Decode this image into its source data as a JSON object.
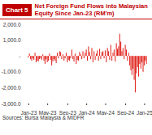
{
  "chart_data": {
    "type": "bar",
    "chart_number": "Chart 5",
    "title": "Net Foreign Fund Flows into Malaysian Equity Since Jan-23 (RM'm)",
    "source": "Sources: Bursa Malaysia & MIDFR",
    "color": "#e0201b",
    "categories": [
      "Jan-23",
      null,
      null,
      null,
      null,
      null,
      null,
      null,
      null,
      null,
      null,
      null,
      null,
      null,
      null,
      null,
      null,
      "May-23",
      null,
      null,
      null,
      null,
      null,
      null,
      null,
      null,
      null,
      null,
      null,
      null,
      null,
      null,
      null,
      null,
      null,
      "Sep-23",
      null,
      null,
      null,
      null,
      null,
      null,
      null,
      null,
      null,
      null,
      null,
      null,
      null,
      null,
      null,
      null,
      "Jan-24",
      null,
      null,
      null,
      null,
      null,
      null,
      null,
      null,
      null,
      null,
      null,
      null,
      null,
      null,
      null,
      null,
      "May-24",
      null,
      null,
      null,
      null,
      null,
      null,
      null,
      null,
      null,
      null,
      null,
      null,
      null,
      null,
      null,
      null,
      null,
      "Sep-24",
      null,
      null,
      null,
      null,
      null,
      null,
      null,
      null,
      null,
      null,
      null,
      null,
      null,
      null,
      null,
      null,
      "Jan-25",
      null,
      null
    ],
    "values": [
      -100,
      150,
      -200,
      -300,
      -150,
      -250,
      200,
      -400,
      -300,
      -350,
      -200,
      -150,
      -250,
      100,
      -300,
      -500,
      -200,
      -400,
      -300,
      150,
      -250,
      -600,
      -350,
      -200,
      -300,
      -450,
      200,
      -150,
      300,
      250,
      -200,
      100,
      -300,
      -150,
      200,
      -400,
      -250,
      -300,
      -150,
      400,
      -200,
      -350,
      150,
      -500,
      -250,
      -300,
      250,
      100,
      -200,
      300,
      -150,
      200,
      400,
      -300,
      600,
      250,
      -200,
      500,
      -400,
      300,
      -250,
      150,
      350,
      -300,
      450,
      -200,
      250,
      300,
      -150,
      350,
      -400,
      500,
      300,
      -250,
      700,
      -300,
      200,
      400,
      -350,
      800,
      450,
      600,
      1400,
      900,
      300,
      500,
      -200,
      700,
      400,
      -300,
      200,
      -600,
      -900,
      -1200,
      -800,
      -1500,
      -2300,
      -1100,
      -700,
      -1300,
      -500,
      -800,
      -400,
      -1000,
      -600,
      -300,
      -500
    ],
    "ylim": [
      -3000,
      2000
    ],
    "yticks": [
      {
        "value": 2000,
        "label": "2,000.0"
      },
      {
        "value": 1000,
        "label": "1,000.0"
      },
      {
        "value": 0,
        "label": "-"
      },
      {
        "value": -1000,
        "label": "-1,000.0"
      },
      {
        "value": -2000,
        "label": "-2,000.0"
      },
      {
        "value": -3000,
        "label": "-3,000.0"
      }
    ],
    "grid": false
  }
}
